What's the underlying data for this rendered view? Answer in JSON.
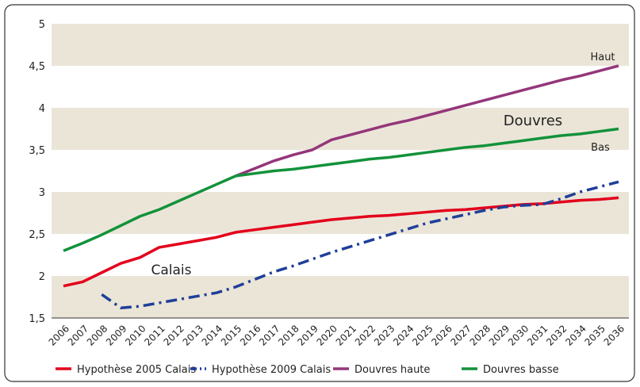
{
  "chart_data": {
    "type": "line",
    "categories": [
      "2006",
      "2007",
      "2008",
      "2009",
      "2010",
      "2011",
      "2012",
      "2013",
      "2014",
      "2015",
      "2016",
      "2017",
      "2018",
      "2019",
      "2020",
      "2021",
      "2022",
      "2023",
      "2024",
      "2025",
      "2026",
      "2027",
      "2028",
      "2029",
      "2030",
      "2031",
      "2032",
      "2034",
      "2035",
      "2036"
    ],
    "series": [
      {
        "name": "Hypothèse 2005 Calais",
        "color": "#e3001b",
        "style": "solid",
        "values": [
          1.88,
          1.93,
          2.04,
          2.15,
          2.22,
          2.34,
          2.38,
          2.42,
          2.46,
          2.52,
          2.55,
          2.58,
          2.61,
          2.64,
          2.67,
          2.69,
          2.71,
          2.72,
          2.74,
          2.76,
          2.78,
          2.79,
          2.81,
          2.83,
          2.85,
          2.86,
          2.88,
          2.9,
          2.91,
          2.93
        ]
      },
      {
        "name": "Hypothèse 2009 Calais",
        "color": "#1f3f99",
        "style": "dashdot",
        "values": [
          null,
          null,
          1.78,
          1.62,
          1.64,
          1.68,
          1.72,
          1.76,
          1.8,
          1.87,
          1.96,
          2.05,
          2.12,
          2.2,
          2.28,
          2.35,
          2.42,
          2.49,
          2.56,
          2.63,
          2.68,
          2.73,
          2.78,
          2.82,
          2.84,
          2.85,
          2.92,
          3.0,
          3.06,
          3.12
        ]
      },
      {
        "name": "Douvres haute",
        "color": "#94367a",
        "style": "solid",
        "values": [
          null,
          null,
          null,
          null,
          null,
          null,
          null,
          null,
          null,
          3.19,
          3.28,
          3.37,
          3.44,
          3.5,
          3.62,
          3.68,
          3.74,
          3.8,
          3.85,
          3.91,
          3.97,
          4.03,
          4.09,
          4.15,
          4.21,
          4.27,
          4.33,
          4.38,
          4.44,
          4.5
        ]
      },
      {
        "name": "Douvres basse",
        "color": "#12923a",
        "style": "solid",
        "values": [
          2.3,
          2.39,
          2.49,
          2.6,
          2.71,
          2.79,
          2.89,
          2.99,
          3.09,
          3.19,
          3.22,
          3.25,
          3.27,
          3.3,
          3.33,
          3.36,
          3.39,
          3.41,
          3.44,
          3.47,
          3.5,
          3.53,
          3.55,
          3.58,
          3.61,
          3.64,
          3.67,
          3.69,
          3.72,
          3.75
        ]
      }
    ],
    "ylim": [
      1.5,
      5
    ],
    "yticks": [
      {
        "value": 1.5,
        "label": "1,5"
      },
      2,
      {
        "value": 2.5,
        "label": "2,5"
      },
      3,
      {
        "value": 3.5,
        "label": "3,5"
      },
      4,
      {
        "value": 4.5,
        "label": "4,5"
      },
      5
    ],
    "band_color": "#ebe5d8",
    "annotations": [
      "Haut",
      "Douvres",
      "Bas",
      "Calais"
    ],
    "legend": "bottom"
  }
}
